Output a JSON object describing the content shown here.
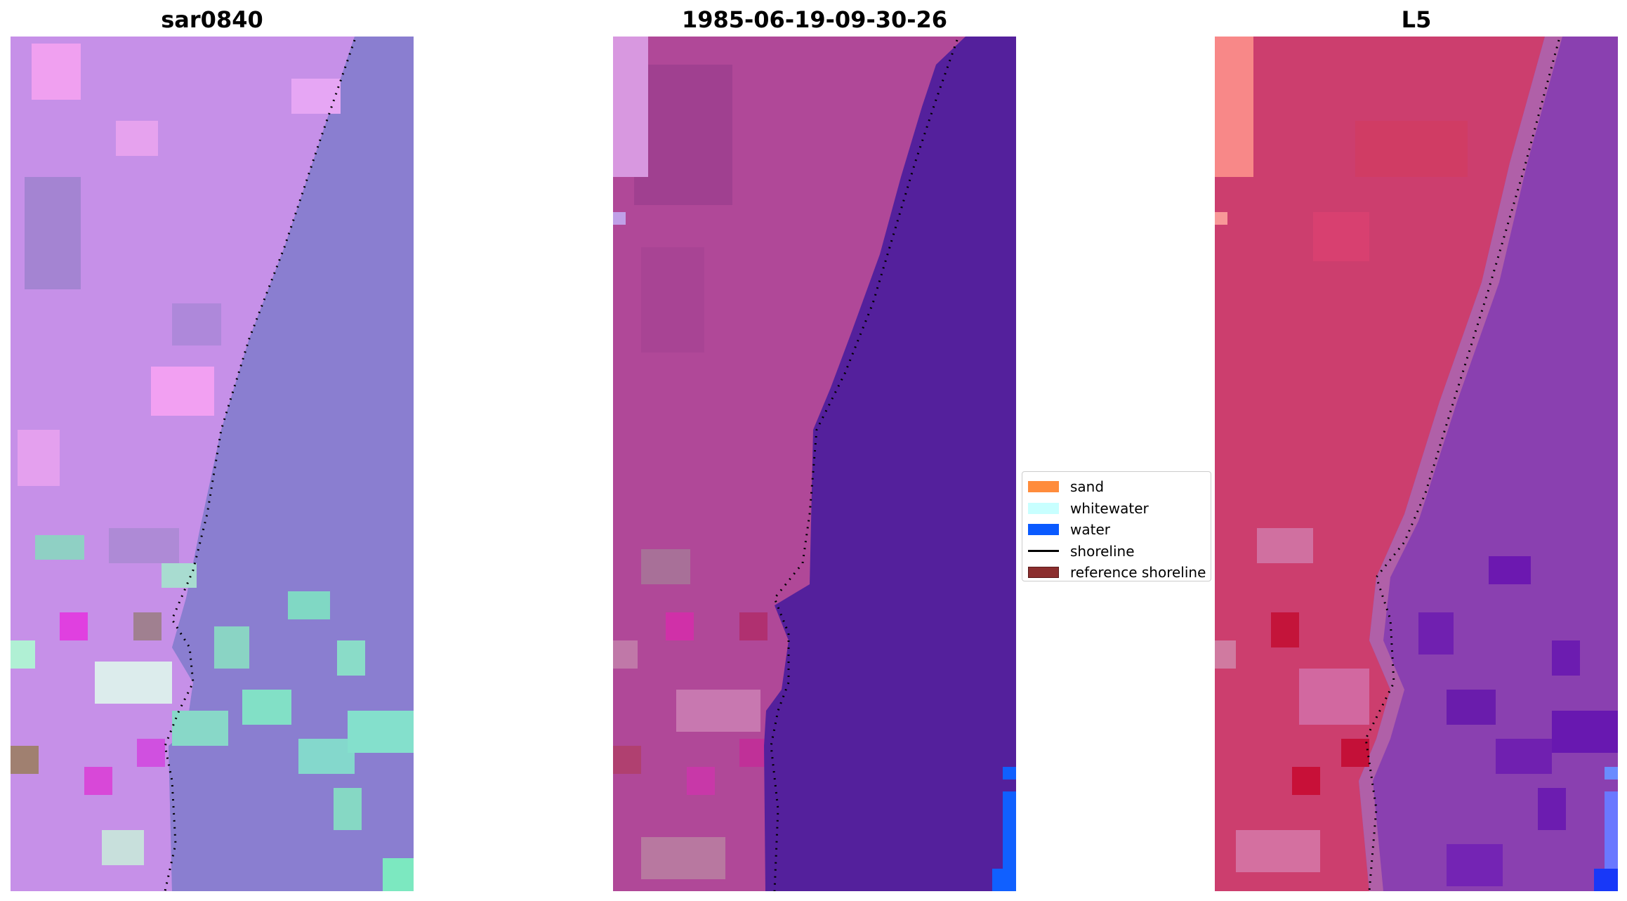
{
  "panels": [
    {
      "title": "sar0840"
    },
    {
      "title": "1985-06-19-09-30-26"
    },
    {
      "title": "L5"
    }
  ],
  "legend": {
    "items": [
      {
        "label": "sand",
        "color": "#ff8c3c",
        "kind": "patch"
      },
      {
        "label": "whitewater",
        "color": "#c8ffff",
        "kind": "patch"
      },
      {
        "label": "water",
        "color": "#0a5aff",
        "kind": "patch"
      },
      {
        "label": "shoreline",
        "color": "#000000",
        "kind": "line"
      },
      {
        "label": "reference shoreline",
        "color": "#8b2e2e",
        "kind": "patch"
      }
    ]
  }
}
